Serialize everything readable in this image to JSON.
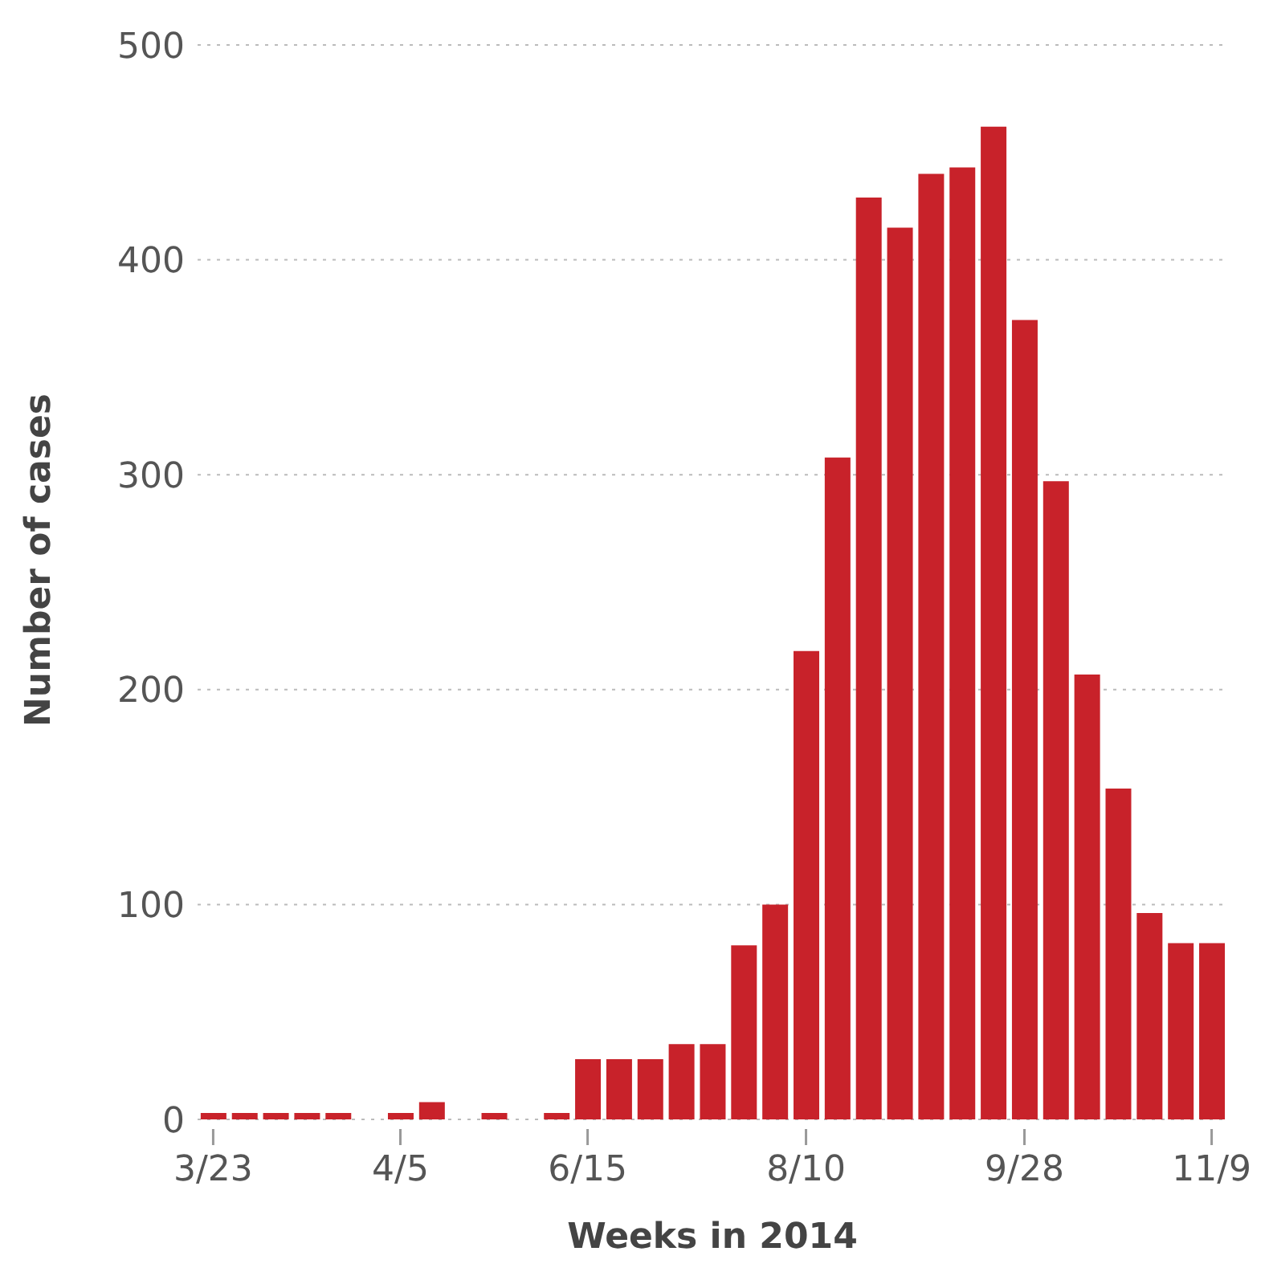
{
  "chart_data": {
    "type": "bar",
    "xlabel": "Weeks in 2014",
    "ylabel": "Number of cases",
    "categories": [
      "3/23",
      null,
      null,
      null,
      null,
      null,
      "4/5",
      null,
      null,
      null,
      null,
      null,
      "6/15",
      null,
      null,
      null,
      null,
      null,
      null,
      "8/10",
      null,
      null,
      null,
      null,
      null,
      null,
      "9/28",
      null,
      null,
      null,
      null,
      null,
      "11/9"
    ],
    "values": [
      3,
      3,
      3,
      3,
      3,
      0,
      3,
      8,
      0,
      3,
      0,
      3,
      28,
      28,
      28,
      35,
      35,
      81,
      100,
      218,
      308,
      429,
      415,
      440,
      443,
      462,
      372,
      297,
      207,
      154,
      96,
      82,
      82
    ],
    "color": "#c8222a",
    "ylim": [
      0,
      500
    ],
    "yticks": [
      0,
      100,
      200,
      300,
      400,
      500
    ],
    "grid": "y"
  }
}
